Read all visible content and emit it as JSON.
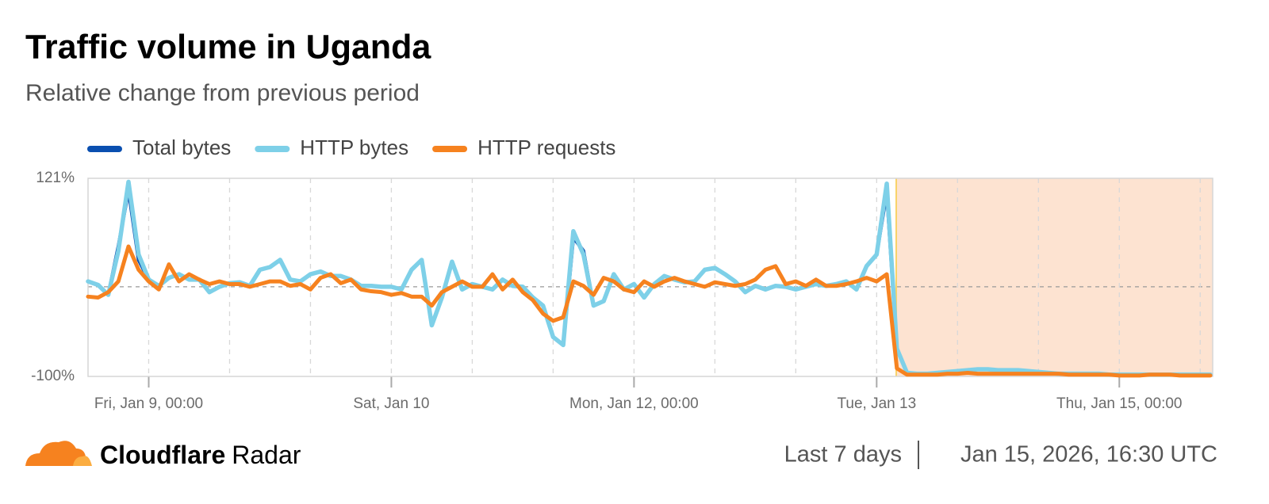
{
  "chart_data": {
    "type": "line",
    "title": "Traffic volume in Uganda",
    "subtitle": "Relative change from previous period",
    "categories": [
      null,
      null,
      null,
      null,
      null,
      null,
      "Fri, Jan 9, 00:00",
      null,
      null,
      null,
      null,
      null,
      null,
      null,
      null,
      null,
      null,
      null,
      null,
      null,
      null,
      null,
      null,
      null,
      null,
      null,
      null,
      null,
      null,
      null,
      "Sat, Jan 10",
      null,
      null,
      null,
      null,
      null,
      null,
      null,
      null,
      null,
      null,
      null,
      null,
      null,
      null,
      null,
      null,
      null,
      null,
      null,
      null,
      null,
      null,
      null,
      "Mon, Jan 12, 00:00",
      null,
      null,
      null,
      null,
      null,
      null,
      null,
      null,
      null,
      null,
      null,
      null,
      null,
      null,
      null,
      null,
      null,
      null,
      null,
      null,
      null,
      null,
      null,
      "Tue, Jan 13",
      null,
      null,
      null,
      null,
      null,
      null,
      null,
      null,
      null,
      null,
      null,
      null,
      null,
      null,
      null,
      null,
      null,
      null,
      null,
      null,
      null,
      null,
      null,
      "Thu, Jan 15, 00:00",
      null,
      null,
      null,
      null,
      null,
      null,
      null,
      null,
      null
    ],
    "series": [
      {
        "name": "Total bytes",
        "color": "#0a4fb0",
        "values": [
          6,
          2,
          -9,
          45,
          108,
          30,
          8,
          1,
          10,
          14,
          8,
          8,
          -6,
          0,
          4,
          5,
          1,
          19,
          22,
          30,
          8,
          6,
          14,
          17,
          12,
          12,
          8,
          1,
          1,
          0,
          0,
          -3,
          19,
          30,
          -43,
          -12,
          28,
          -3,
          3,
          0,
          -3,
          8,
          1,
          0,
          -12,
          -21,
          -56,
          -65,
          55,
          40,
          -21,
          -16,
          14,
          -3,
          3,
          -12,
          3,
          12,
          8,
          5,
          6,
          19,
          21,
          14,
          6,
          -6,
          1,
          -3,
          1,
          0,
          -3,
          0,
          3,
          1,
          3,
          6,
          -3,
          23,
          36,
          106,
          -69,
          -96,
          -97,
          -97,
          -96,
          -95,
          -94,
          -93,
          -92,
          -92,
          -93,
          -93,
          -93,
          -94,
          -95,
          -96,
          -97,
          -97,
          -97,
          -97,
          -97,
          -98,
          -98,
          -98,
          -98,
          -98,
          -98,
          -98,
          -98,
          -98,
          -98,
          -98
        ]
      },
      {
        "name": "HTTP bytes",
        "color": "#7ed0e8",
        "values": [
          6,
          2,
          -9,
          40,
          117,
          36,
          8,
          1,
          10,
          14,
          8,
          8,
          -6,
          0,
          4,
          5,
          1,
          19,
          22,
          30,
          8,
          6,
          14,
          17,
          12,
          12,
          8,
          1,
          1,
          0,
          0,
          -3,
          19,
          30,
          -43,
          -12,
          28,
          -3,
          3,
          0,
          -3,
          8,
          1,
          0,
          -12,
          -21,
          -56,
          -65,
          62,
          36,
          -21,
          -16,
          14,
          -3,
          3,
          -12,
          3,
          12,
          8,
          5,
          6,
          19,
          21,
          14,
          6,
          -6,
          1,
          -3,
          1,
          0,
          -3,
          0,
          3,
          1,
          3,
          6,
          -3,
          23,
          36,
          115,
          -69,
          -96,
          -97,
          -97,
          -96,
          -95,
          -94,
          -93,
          -92,
          -92,
          -93,
          -93,
          -93,
          -94,
          -95,
          -96,
          -97,
          -97,
          -97,
          -97,
          -97,
          -98,
          -98,
          -98,
          -98,
          -98,
          -98,
          -98,
          -98,
          -98,
          -98,
          -98
        ]
      },
      {
        "name": "HTTP requests",
        "color": "#f6821f",
        "values": [
          -11,
          -12,
          -6,
          6,
          45,
          19,
          6,
          -3,
          25,
          6,
          14,
          8,
          3,
          6,
          3,
          3,
          0,
          3,
          6,
          6,
          1,
          3,
          -3,
          10,
          14,
          4,
          8,
          -3,
          -5,
          -6,
          -9,
          -7,
          -11,
          -11,
          -21,
          -6,
          0,
          6,
          0,
          0,
          14,
          -3,
          8,
          -6,
          -15,
          -30,
          -38,
          -34,
          6,
          1,
          -9,
          10,
          6,
          -3,
          -6,
          6,
          0,
          6,
          10,
          6,
          3,
          0,
          5,
          3,
          1,
          3,
          8,
          19,
          23,
          3,
          6,
          1,
          8,
          1,
          1,
          3,
          6,
          10,
          6,
          14,
          -91,
          -98,
          -98,
          -98,
          -98,
          -97,
          -97,
          -96,
          -97,
          -97,
          -97,
          -97,
          -97,
          -97,
          -97,
          -97,
          -97,
          -98,
          -98,
          -98,
          -98,
          -98,
          -99,
          -99,
          -99,
          -98,
          -98,
          -98,
          -99,
          -99,
          -99,
          -99
        ]
      }
    ],
    "ylim": [
      -100,
      121
    ],
    "yticks": [
      {
        "value": -100,
        "label": "-100%"
      },
      {
        "value": 121,
        "label": "121%"
      }
    ],
    "baseline": 0,
    "legend": "top",
    "brand": {
      "name": "Cloudflare",
      "product": "Radar"
    },
    "period": "Last 7 days",
    "timestamp": "Jan 15, 2026, 16:30 UTC"
  }
}
